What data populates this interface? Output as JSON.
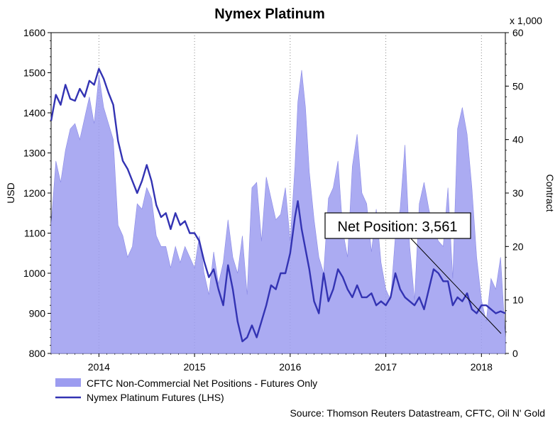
{
  "chart_data": {
    "type": "area+line",
    "title": "Nymex Platinum",
    "y_left": {
      "label": "USD",
      "ticks": [
        "1600",
        "1500",
        "1400",
        "1300",
        "1200",
        "1100",
        "1000",
        "900",
        "800"
      ],
      "range": [
        800,
        1600
      ]
    },
    "y_right": {
      "label": "Contract",
      "unit": "x 1,000",
      "ticks": [
        "60",
        "50",
        "40",
        "30",
        "20",
        "10",
        "0"
      ],
      "range": [
        0,
        60
      ]
    },
    "x_ticks": [
      "2014",
      "2015",
      "2016",
      "2017",
      "2018"
    ],
    "x_range": [
      2013.5,
      2018.25
    ],
    "series": [
      {
        "name": "CFTC Non-Commercial Net Positions - Futures Only",
        "axis": "right",
        "style": "area",
        "color": "#9c9cf0",
        "x": [
          2013.5,
          2013.55,
          2013.6,
          2013.65,
          2013.7,
          2013.75,
          2013.8,
          2013.85,
          2013.9,
          2013.95,
          2014.0,
          2014.05,
          2014.1,
          2014.15,
          2014.2,
          2014.25,
          2014.3,
          2014.35,
          2014.4,
          2014.45,
          2014.5,
          2014.55,
          2014.6,
          2014.65,
          2014.7,
          2014.75,
          2014.8,
          2014.85,
          2014.9,
          2014.95,
          2015.0,
          2015.05,
          2015.1,
          2015.15,
          2015.2,
          2015.25,
          2015.3,
          2015.35,
          2015.4,
          2015.45,
          2015.5,
          2015.55,
          2015.6,
          2015.65,
          2015.7,
          2015.75,
          2015.8,
          2015.85,
          2015.9,
          2015.95,
          2016.0,
          2016.05,
          2016.08,
          2016.12,
          2016.16,
          2016.2,
          2016.25,
          2016.3,
          2016.35,
          2016.4,
          2016.45,
          2016.5,
          2016.55,
          2016.6,
          2016.65,
          2016.7,
          2016.75,
          2016.8,
          2016.85,
          2016.9,
          2016.95,
          2017.0,
          2017.05,
          2017.1,
          2017.15,
          2017.2,
          2017.25,
          2017.3,
          2017.35,
          2017.4,
          2017.45,
          2017.5,
          2017.55,
          2017.6,
          2017.65,
          2017.7,
          2017.75,
          2017.8,
          2017.85,
          2017.9,
          2017.95,
          2018.0,
          2018.05,
          2018.1,
          2018.15,
          2018.2,
          2018.25
        ],
        "values": [
          24,
          36,
          32,
          38,
          42,
          43,
          40,
          44,
          48,
          43,
          52,
          46,
          43,
          40,
          24,
          22,
          18,
          20,
          28,
          27,
          31,
          29,
          22,
          20,
          20,
          16,
          20,
          17,
          20,
          18,
          16,
          22,
          15,
          11,
          19,
          13,
          17,
          25,
          18,
          15,
          22,
          11,
          31,
          32,
          21,
          33,
          29,
          25,
          26,
          31,
          21,
          35,
          47,
          53,
          46,
          34,
          25,
          18,
          15,
          29,
          31,
          36,
          23,
          18,
          35,
          41,
          30,
          28,
          19,
          27,
          17,
          12,
          10,
          22,
          27,
          39,
          20,
          10,
          28,
          32,
          27,
          23,
          21,
          20,
          31,
          14,
          42,
          46,
          41,
          31,
          18,
          10,
          6,
          14,
          12,
          18,
          3
        ],
        "labels": [
          "Net Position: 3,561"
        ]
      },
      {
        "name": "Nymex Platinum Futures (LHS)",
        "axis": "left",
        "style": "line",
        "color": "#3333b3",
        "x": [
          2013.5,
          2013.55,
          2013.6,
          2013.65,
          2013.7,
          2013.75,
          2013.8,
          2013.85,
          2013.9,
          2013.95,
          2014.0,
          2014.05,
          2014.1,
          2014.15,
          2014.2,
          2014.25,
          2014.3,
          2014.35,
          2014.4,
          2014.45,
          2014.5,
          2014.55,
          2014.6,
          2014.65,
          2014.7,
          2014.75,
          2014.8,
          2014.85,
          2014.9,
          2014.95,
          2015.0,
          2015.05,
          2015.1,
          2015.15,
          2015.2,
          2015.25,
          2015.3,
          2015.35,
          2015.4,
          2015.45,
          2015.5,
          2015.55,
          2015.6,
          2015.65,
          2015.7,
          2015.75,
          2015.8,
          2015.85,
          2015.9,
          2015.95,
          2016.0,
          2016.05,
          2016.08,
          2016.12,
          2016.16,
          2016.2,
          2016.25,
          2016.3,
          2016.35,
          2016.4,
          2016.45,
          2016.5,
          2016.55,
          2016.6,
          2016.65,
          2016.7,
          2016.75,
          2016.8,
          2016.85,
          2016.9,
          2016.95,
          2017.0,
          2017.05,
          2017.1,
          2017.15,
          2017.2,
          2017.25,
          2017.3,
          2017.35,
          2017.4,
          2017.45,
          2017.5,
          2017.55,
          2017.6,
          2017.65,
          2017.7,
          2017.75,
          2017.8,
          2017.85,
          2017.9,
          2017.95,
          2018.0,
          2018.05,
          2018.1,
          2018.15,
          2018.2,
          2018.25
        ],
        "values": [
          1380,
          1445,
          1420,
          1470,
          1435,
          1430,
          1460,
          1440,
          1480,
          1470,
          1510,
          1485,
          1450,
          1420,
          1330,
          1280,
          1260,
          1230,
          1200,
          1230,
          1270,
          1230,
          1170,
          1140,
          1150,
          1110,
          1150,
          1120,
          1130,
          1100,
          1100,
          1080,
          1030,
          990,
          1010,
          960,
          920,
          1020,
          960,
          880,
          830,
          840,
          870,
          840,
          880,
          920,
          970,
          960,
          1000,
          1000,
          1050,
          1140,
          1180,
          1110,
          1060,
          1010,
          930,
          900,
          1000,
          930,
          960,
          1010,
          990,
          960,
          940,
          970,
          940,
          940,
          950,
          920,
          930,
          920,
          940,
          1000,
          960,
          940,
          930,
          920,
          940,
          910,
          960,
          1010,
          1000,
          980,
          980,
          920,
          940,
          930,
          950,
          910,
          900,
          920,
          920,
          910,
          900,
          905,
          900
        ],
        "labels": []
      }
    ],
    "legend": [
      "CFTC Non-Commercial Net Positions - Futures Only",
      "Nymex Platinum Futures (LHS)"
    ],
    "legend_position": "bottom-left",
    "source": "Source: Thomson Reuters Datastream, CFTC, Oil N' Gold",
    "grid": "vertical dotted at year ticks"
  }
}
